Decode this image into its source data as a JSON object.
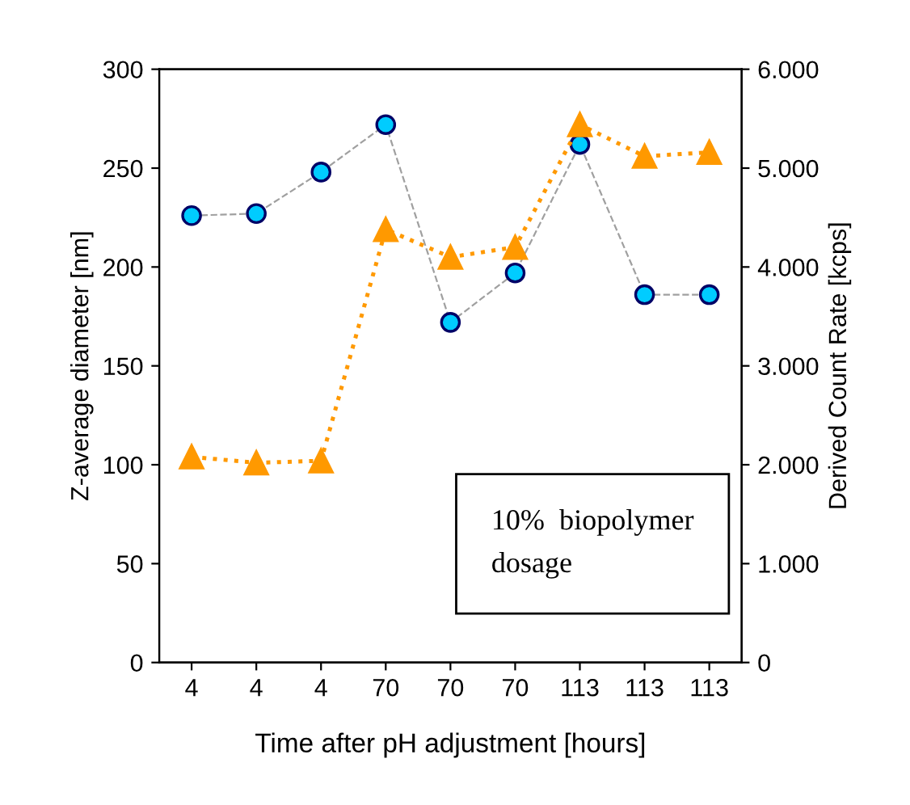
{
  "chart_data": {
    "type": "line",
    "xlabel": "Time after pH adjustment [hours]",
    "ylabel": "Z-average diameter [nm]",
    "y2label": "Derived Count Rate [kcps]",
    "categories": [
      "4",
      "4",
      "4",
      "70",
      "70",
      "70",
      "113",
      "113",
      "113"
    ],
    "series": [
      {
        "color": "#00ccff",
        "marker": "circle",
        "line_style": "dashed",
        "values": [
          226,
          227,
          248,
          272,
          172,
          197,
          262,
          186,
          186
        ]
      },
      {
        "axis": "y2",
        "color": "#ff9900",
        "marker": "triangle",
        "line_style": "dotted",
        "values": [
          2080,
          2020,
          2040,
          4380,
          4100,
          4200,
          5440,
          5120,
          5160
        ]
      }
    ],
    "ylim": [
      0,
      300
    ],
    "yticks": [
      0,
      50,
      100,
      150,
      200,
      250,
      300
    ],
    "y2lim": [
      0,
      6000
    ],
    "y2ticks": [
      0,
      {
        "value": 1000,
        "label": "1.000"
      },
      {
        "value": 2000,
        "label": "2.000"
      },
      {
        "value": 3000,
        "label": "3.000"
      },
      {
        "value": 4000,
        "label": "4.000"
      },
      {
        "value": 5000,
        "label": "5.000"
      },
      {
        "value": 6000,
        "label": "6.000"
      }
    ],
    "annotations": [
      "10%  biopolymer\ndosage"
    ],
    "grid": false,
    "legend": false
  }
}
